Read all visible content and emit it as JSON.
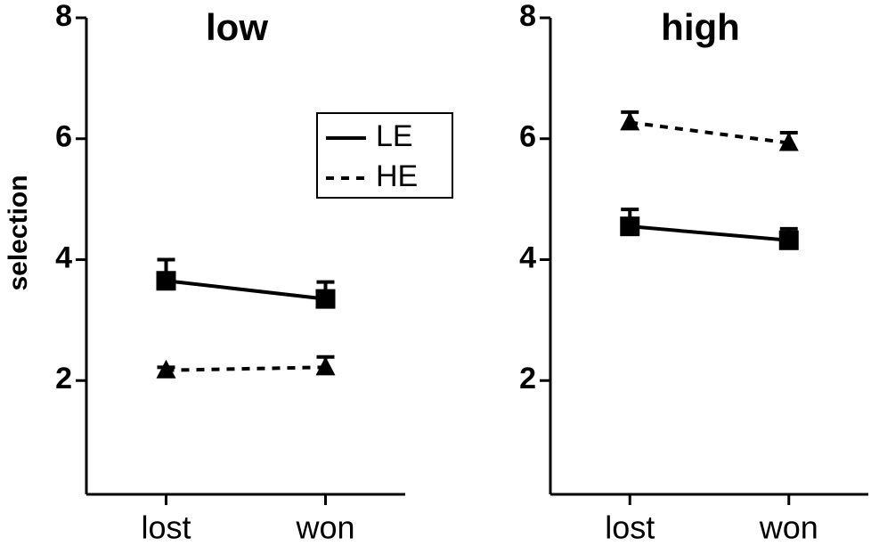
{
  "chart_data": [
    {
      "type": "line",
      "title": "low",
      "y_label": "selection",
      "categories": [
        "lost",
        "won"
      ],
      "ylim": [
        0,
        8
      ],
      "yticks": [
        2,
        4,
        6,
        8
      ],
      "legend": "upper right",
      "series": [
        {
          "name": "LE",
          "color": "#000000",
          "line_style": "solid",
          "marker": "square",
          "values": [
            3.65,
            3.35
          ],
          "errors": [
            0.35,
            0.28
          ]
        },
        {
          "name": "HE",
          "color": "#000000",
          "line_style": "dashed",
          "marker": "triangle",
          "values": [
            2.17,
            2.22
          ],
          "errors": [
            0.05,
            0.17
          ]
        }
      ]
    },
    {
      "type": "line",
      "title": "high",
      "categories": [
        "lost",
        "won"
      ],
      "ylim": [
        0,
        8
      ],
      "yticks": [
        2,
        4,
        6,
        8
      ],
      "series": [
        {
          "color": "#000000",
          "line_style": "solid",
          "marker": "square",
          "values": [
            4.55,
            4.32
          ],
          "errors": [
            0.28,
            0.19
          ]
        },
        {
          "color": "#000000",
          "line_style": "dashed",
          "marker": "triangle",
          "values": [
            6.27,
            5.93
          ],
          "errors": [
            0.17,
            0.17
          ]
        }
      ]
    }
  ]
}
